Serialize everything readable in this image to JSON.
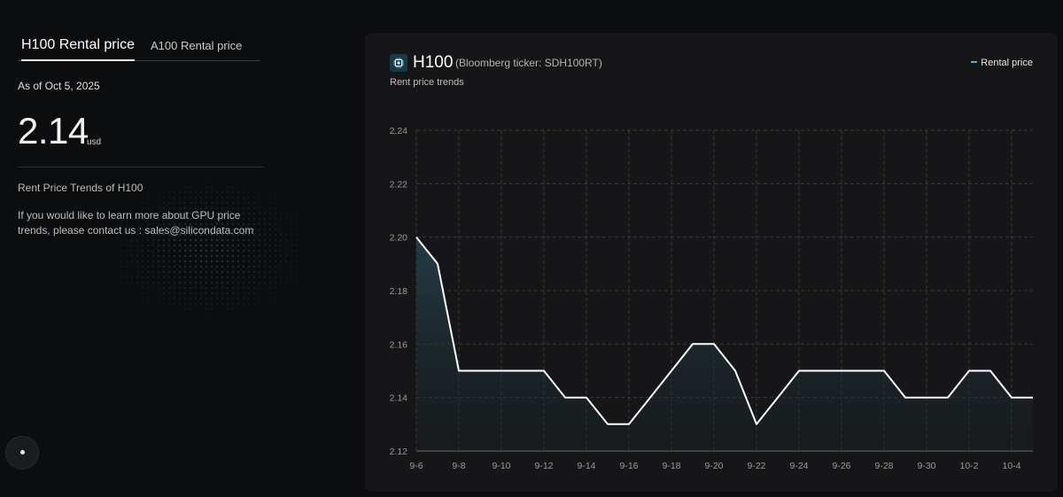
{
  "left_panel": {
    "tabs": [
      {
        "label": "H100 Rental price",
        "active": true
      },
      {
        "label": "A100 Rental price",
        "active": false
      }
    ],
    "as_of": "As of Oct 5, 2025",
    "price": "2.14",
    "unit": "usd",
    "trend_title": "Rent Price Trends of H100",
    "contact_text": "If you would like to learn more about GPU price trends, please contact us : sales@silicondata.com"
  },
  "card": {
    "title": "H100",
    "ticker": "(Bloomberg ticker: SDH100RT)",
    "subtitle": "Rent price trends",
    "icon": "chip-icon",
    "legend_label": "Rental price"
  },
  "colors": {
    "background": "#0c0d0f",
    "card": "#161618",
    "line": "#ffffff",
    "legend_accent": "#4fb3c9",
    "area_fill": "#1f3a44"
  },
  "chart_data": {
    "type": "area",
    "title": "",
    "xlabel": "",
    "ylabel": "",
    "ylim": [
      2.12,
      2.24
    ],
    "yticks": [
      "2.12",
      "2.14",
      "2.16",
      "2.18",
      "2.20",
      "2.22",
      "2.24"
    ],
    "x": [
      "9-6",
      "9-7",
      "9-8",
      "9-9",
      "9-10",
      "9-11",
      "9-12",
      "9-13",
      "9-14",
      "9-15",
      "9-16",
      "9-17",
      "9-18",
      "9-19",
      "9-20",
      "9-21",
      "9-22",
      "9-23",
      "9-24",
      "9-25",
      "9-26",
      "9-27",
      "9-28",
      "9-29",
      "9-30",
      "10-1",
      "10-2",
      "10-3",
      "10-4",
      "10-5"
    ],
    "xtick_labels": [
      "9-6",
      "9-8",
      "9-10",
      "9-12",
      "9-14",
      "9-16",
      "9-18",
      "9-20",
      "9-22",
      "9-24",
      "9-26",
      "9-28",
      "9-30",
      "10-2",
      "10-4"
    ],
    "series": [
      {
        "name": "Rental price",
        "values": [
          2.2,
          2.19,
          2.15,
          2.15,
          2.15,
          2.15,
          2.15,
          2.14,
          2.14,
          2.13,
          2.13,
          2.14,
          2.15,
          2.16,
          2.16,
          2.15,
          2.13,
          2.14,
          2.15,
          2.15,
          2.15,
          2.15,
          2.15,
          2.14,
          2.14,
          2.14,
          2.15,
          2.15,
          2.14,
          2.14
        ]
      }
    ],
    "grid": true,
    "legend": "top-right"
  }
}
